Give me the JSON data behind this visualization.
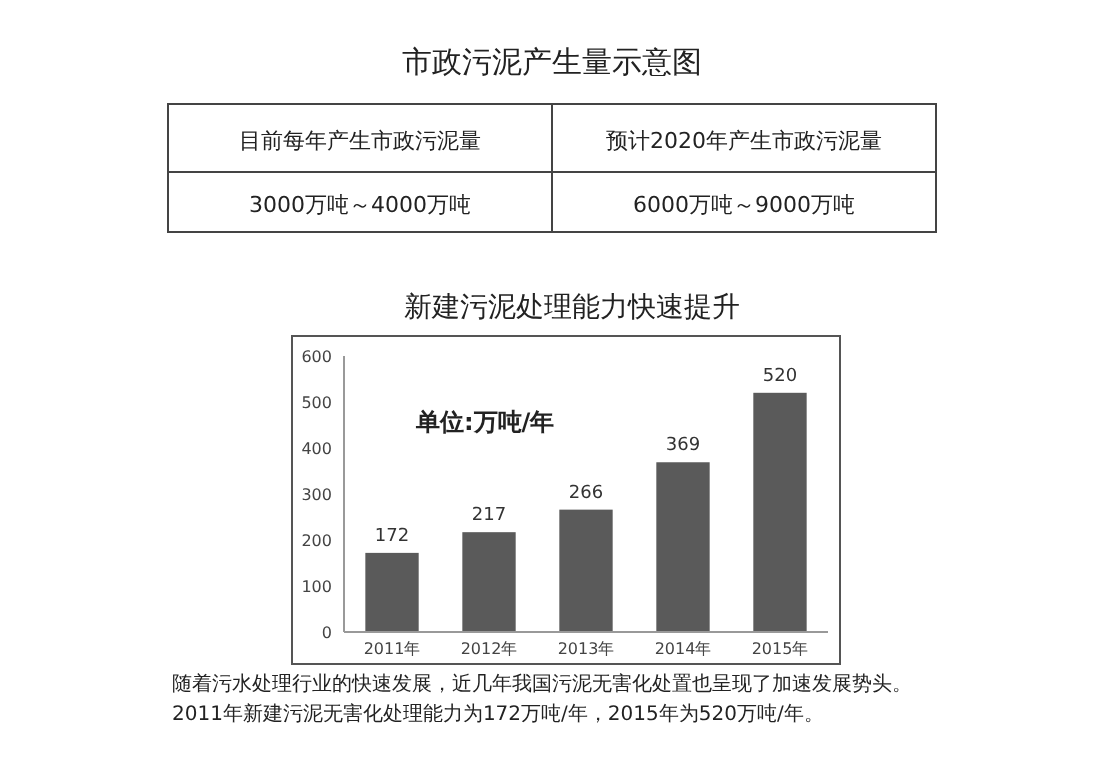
{
  "chart_data": [
    {
      "type": "other",
      "title": "市政污泥产生量示意图",
      "annotations": [
        "目前每年产生市政污泥量",
        "预计2020年产生市政污泥量",
        "3000万吨～4000万吨",
        "6000万吨～9000万吨"
      ]
    },
    {
      "type": "bar",
      "title": "新建污泥处理能力快速提升",
      "categories": [
        "2011年",
        "2012年",
        "2013年",
        "2014年",
        "2015年"
      ],
      "values": [
        172,
        217,
        266,
        369,
        520
      ],
      "color": "#5a5a5a",
      "ylim": [
        0,
        600
      ],
      "yticks": [
        0,
        100,
        200,
        300,
        400,
        500,
        600
      ],
      "data_labels": true,
      "annotations": [
        "单位:万吨/年",
        "随着污水处理行业的快速发展，近几年我国污泥无害化处置也呈现了加速发展势头。2011年新建污泥无害化处理能力为172万吨/年，2015年为520万吨/年。"
      ]
    }
  ]
}
